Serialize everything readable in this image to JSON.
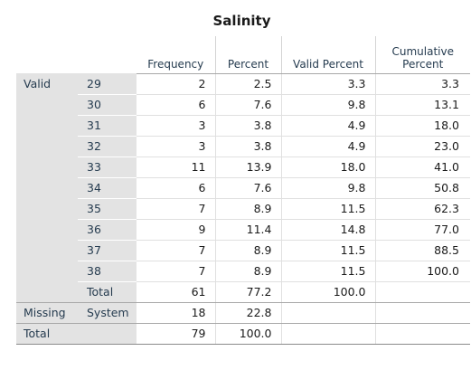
{
  "title": "Salinity",
  "headers": {
    "frequency": "Frequency",
    "percent": "Percent",
    "valid_percent": "Valid Percent",
    "cumulative_percent_line1": "Cumulative",
    "cumulative_percent_line2": "Percent"
  },
  "groups": {
    "valid": "Valid",
    "missing": "Missing",
    "total": "Total"
  },
  "valid_rows": [
    {
      "label": "29",
      "frequency": "2",
      "percent": "2.5",
      "valid_percent": "3.3",
      "cumulative_percent": "3.3"
    },
    {
      "label": "30",
      "frequency": "6",
      "percent": "7.6",
      "valid_percent": "9.8",
      "cumulative_percent": "13.1"
    },
    {
      "label": "31",
      "frequency": "3",
      "percent": "3.8",
      "valid_percent": "4.9",
      "cumulative_percent": "18.0"
    },
    {
      "label": "32",
      "frequency": "3",
      "percent": "3.8",
      "valid_percent": "4.9",
      "cumulative_percent": "23.0"
    },
    {
      "label": "33",
      "frequency": "11",
      "percent": "13.9",
      "valid_percent": "18.0",
      "cumulative_percent": "41.0"
    },
    {
      "label": "34",
      "frequency": "6",
      "percent": "7.6",
      "valid_percent": "9.8",
      "cumulative_percent": "50.8"
    },
    {
      "label": "35",
      "frequency": "7",
      "percent": "8.9",
      "valid_percent": "11.5",
      "cumulative_percent": "62.3"
    },
    {
      "label": "36",
      "frequency": "9",
      "percent": "11.4",
      "valid_percent": "14.8",
      "cumulative_percent": "77.0"
    },
    {
      "label": "37",
      "frequency": "7",
      "percent": "8.9",
      "valid_percent": "11.5",
      "cumulative_percent": "88.5"
    },
    {
      "label": "38",
      "frequency": "7",
      "percent": "8.9",
      "valid_percent": "11.5",
      "cumulative_percent": "100.0"
    }
  ],
  "valid_total": {
    "label": "Total",
    "frequency": "61",
    "percent": "77.2",
    "valid_percent": "100.0"
  },
  "missing_row": {
    "label": "System",
    "frequency": "18",
    "percent": "22.8"
  },
  "grand_total": {
    "frequency": "79",
    "percent": "100.0"
  }
}
